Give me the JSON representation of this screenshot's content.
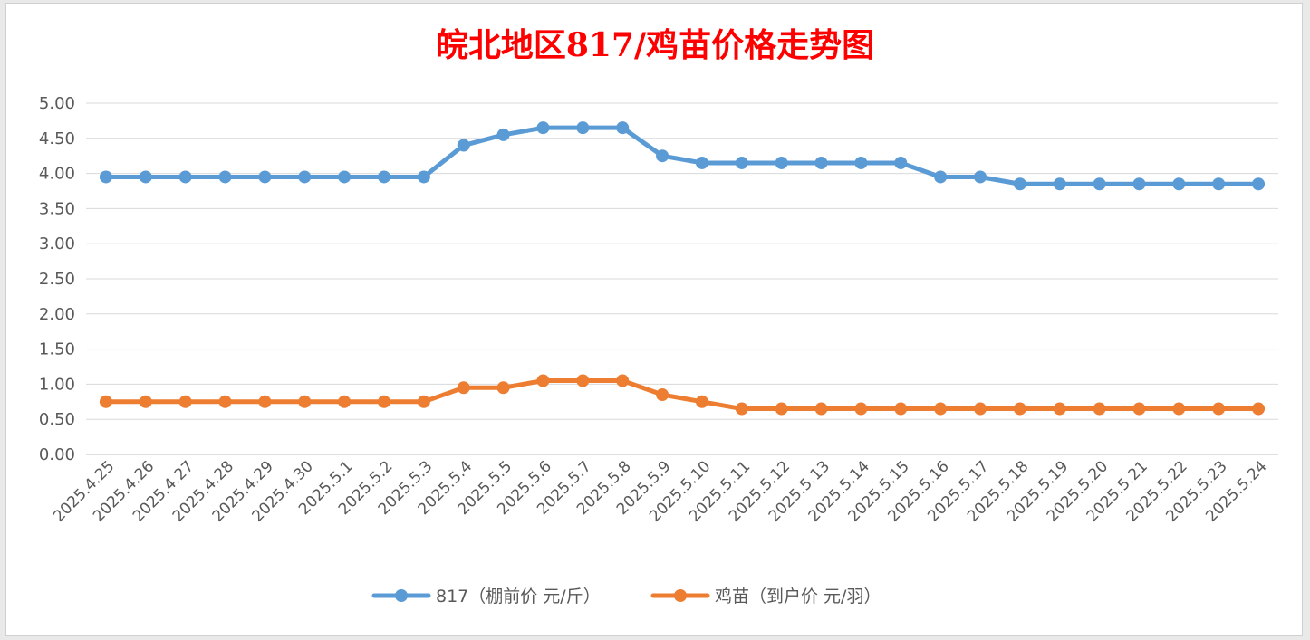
{
  "chart_data": {
    "type": "line",
    "title": "皖北地区817/鸡苗价格走势图",
    "xlabel": "",
    "ylabel": "",
    "ylim": [
      0,
      5
    ],
    "y_ticks": [
      "0.00",
      "0.50",
      "1.00",
      "1.50",
      "2.00",
      "2.50",
      "3.00",
      "3.50",
      "4.00",
      "4.50",
      "5.00"
    ],
    "grid": true,
    "legend_position": "bottom",
    "categories": [
      "2025.4.25",
      "2025.4.26",
      "2025.4.27",
      "2025.4.28",
      "2025.4.29",
      "2025.4.30",
      "2025.5.1",
      "2025.5.2",
      "2025.5.3",
      "2025.5.4",
      "2025.5.5",
      "2025.5.6",
      "2025.5.7",
      "2025.5.8",
      "2025.5.9",
      "2025.5.10",
      "2025.5.11",
      "2025.5.12",
      "2025.5.13",
      "2025.5.14",
      "2025.5.15",
      "2025.5.16",
      "2025.5.17",
      "2025.5.18",
      "2025.5.19",
      "2025.5.20",
      "2025.5.21",
      "2025.5.22",
      "2025.5.23",
      "2025.5.24"
    ],
    "series": [
      {
        "name": "817（棚前价 元/斤）",
        "color": "#5b9bd5",
        "values": [
          3.95,
          3.95,
          3.95,
          3.95,
          3.95,
          3.95,
          3.95,
          3.95,
          3.95,
          4.4,
          4.55,
          4.65,
          4.65,
          4.65,
          4.25,
          4.15,
          4.15,
          4.15,
          4.15,
          4.15,
          4.15,
          3.95,
          3.95,
          3.85,
          3.85,
          3.85,
          3.85,
          3.85,
          3.85,
          3.85
        ]
      },
      {
        "name": "鸡苗（到户价 元/羽）",
        "color": "#ed7d31",
        "values": [
          0.75,
          0.75,
          0.75,
          0.75,
          0.75,
          0.75,
          0.75,
          0.75,
          0.75,
          0.95,
          0.95,
          1.05,
          1.05,
          1.05,
          0.85,
          0.75,
          0.65,
          0.65,
          0.65,
          0.65,
          0.65,
          0.65,
          0.65,
          0.65,
          0.65,
          0.65,
          0.65,
          0.65,
          0.65,
          0.65
        ]
      }
    ]
  }
}
